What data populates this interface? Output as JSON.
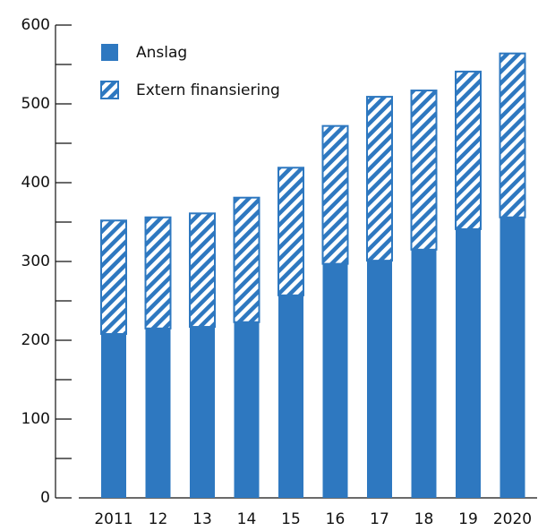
{
  "chart_data": {
    "type": "stacked_bar",
    "categories": [
      "2011",
      "12",
      "13",
      "14",
      "15",
      "16",
      "17",
      "18",
      "19",
      "2020"
    ],
    "series": [
      {
        "name": "Anslag",
        "color": "#2e78c0",
        "pattern": "solid",
        "values": [
          208,
          215,
          217,
          223,
          257,
          297,
          301,
          315,
          341,
          356
        ]
      },
      {
        "name": "Extern finansiering",
        "color": "#2e78c0",
        "pattern": "hatch",
        "values": [
          144,
          141,
          144,
          158,
          162,
          175,
          208,
          202,
          200,
          208
        ]
      }
    ],
    "ylim": [
      0,
      600
    ],
    "yticks": [
      0,
      100,
      200,
      300,
      400,
      500,
      600
    ],
    "yminor_ticks": [
      50,
      150,
      250,
      350,
      450,
      550
    ],
    "legend": "top-left"
  }
}
